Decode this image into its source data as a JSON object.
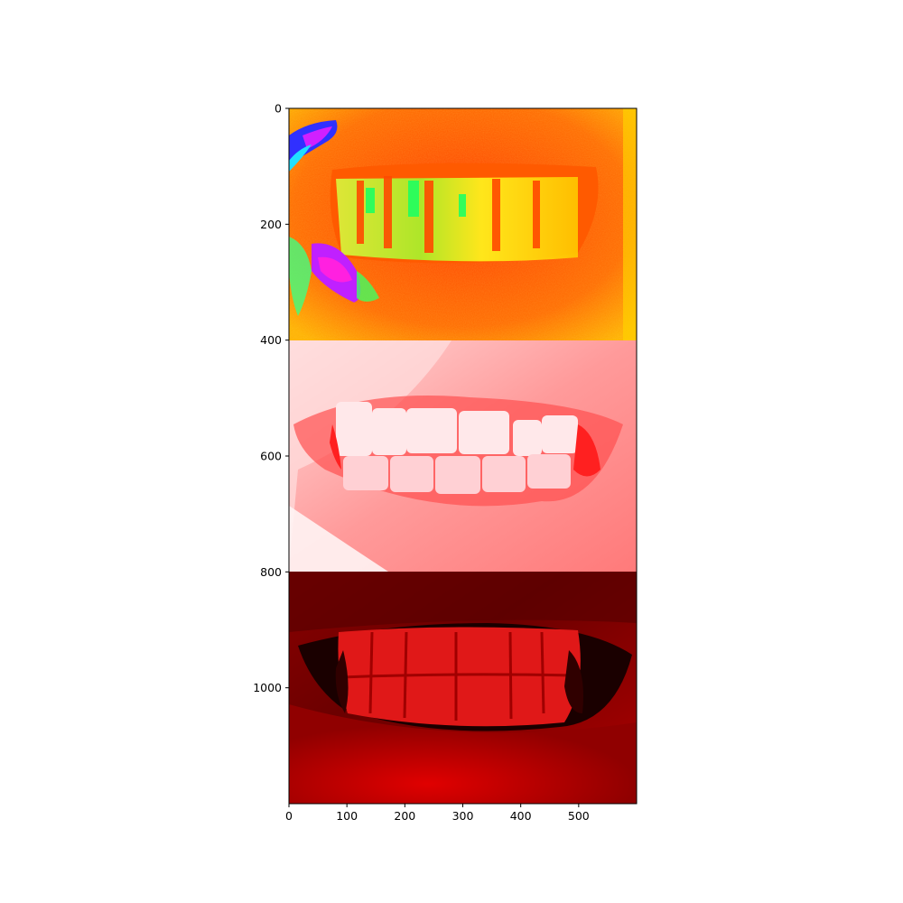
{
  "figure": {
    "panels": [
      {
        "name": "hsv-colormap-mouth",
        "colormap": "hsv"
      },
      {
        "name": "reds-light-colormap-mouth",
        "colormap": "light-red"
      },
      {
        "name": "red-channel-mouth",
        "colormap": "red-channel"
      }
    ]
  },
  "axes": {
    "x_range": [
      0,
      600
    ],
    "y_range": [
      0,
      1200
    ],
    "x_ticks": [
      {
        "value": 0,
        "label": "0"
      },
      {
        "value": 100,
        "label": "100"
      },
      {
        "value": 200,
        "label": "200"
      },
      {
        "value": 300,
        "label": "300"
      },
      {
        "value": 400,
        "label": "400"
      },
      {
        "value": 500,
        "label": "500"
      }
    ],
    "y_ticks": [
      {
        "value": 0,
        "label": "0"
      },
      {
        "value": 200,
        "label": "200"
      },
      {
        "value": 400,
        "label": "400"
      },
      {
        "value": 600,
        "label": "600"
      },
      {
        "value": 800,
        "label": "800"
      },
      {
        "value": 1000,
        "label": "1000"
      }
    ]
  }
}
